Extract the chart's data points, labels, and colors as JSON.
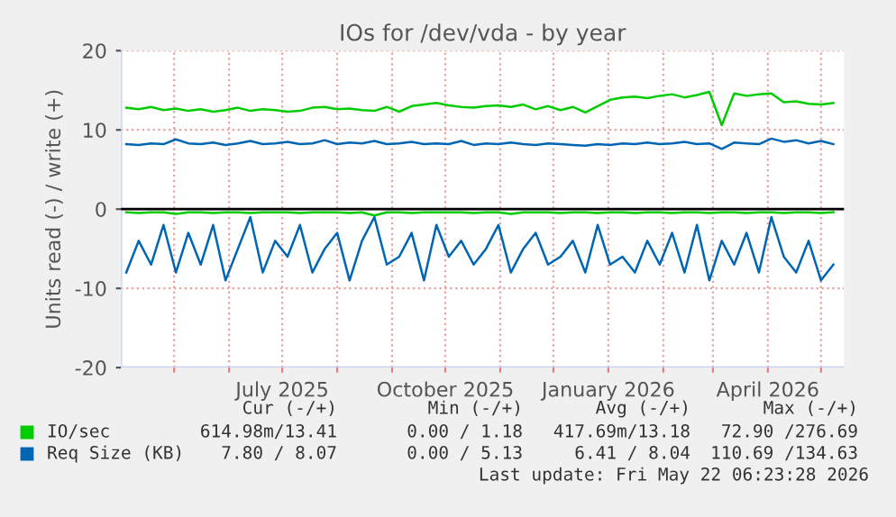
{
  "chart_data": {
    "type": "line",
    "title": "IOs for /dev/vda - by year",
    "ylabel": "Units read (-) / write (+)",
    "x": [
      "2025-04-04",
      "2025-04-11",
      "2025-04-18",
      "2025-04-25",
      "2025-05-02",
      "2025-05-09",
      "2025-05-16",
      "2025-05-23",
      "2025-05-30",
      "2025-06-06",
      "2025-06-13",
      "2025-06-20",
      "2025-06-27",
      "2025-07-04",
      "2025-07-11",
      "2025-07-18",
      "2025-07-25",
      "2025-08-01",
      "2025-08-08",
      "2025-08-15",
      "2025-08-22",
      "2025-08-29",
      "2025-09-05",
      "2025-09-12",
      "2025-09-19",
      "2025-09-26",
      "2025-10-03",
      "2025-10-10",
      "2025-10-17",
      "2025-10-24",
      "2025-10-31",
      "2025-11-07",
      "2025-11-14",
      "2025-11-21",
      "2025-11-28",
      "2025-12-05",
      "2025-12-12",
      "2025-12-19",
      "2025-12-26",
      "2026-01-02",
      "2026-01-09",
      "2026-01-16",
      "2026-01-23",
      "2026-01-30",
      "2026-02-06",
      "2026-02-13",
      "2026-02-20",
      "2026-02-27",
      "2026-03-06",
      "2026-03-13",
      "2026-03-20",
      "2026-03-27",
      "2026-04-03",
      "2026-04-10",
      "2026-04-17",
      "2026-04-24",
      "2026-05-01",
      "2026-05-08"
    ],
    "series": [
      {
        "name": "IO/sec",
        "color": "#00cc00",
        "values": [
          12.8,
          12.6,
          12.9,
          12.5,
          12.7,
          12.4,
          12.6,
          12.3,
          12.5,
          12.8,
          12.4,
          12.6,
          12.5,
          12.3,
          12.4,
          12.8,
          12.9,
          12.6,
          12.7,
          12.5,
          12.4,
          12.9,
          12.3,
          13.0,
          13.2,
          13.4,
          13.1,
          12.9,
          12.8,
          13.0,
          13.1,
          12.9,
          13.2,
          12.6,
          13.0,
          12.5,
          12.9,
          12.2,
          13.0,
          13.8,
          14.1,
          14.2,
          14.0,
          14.3,
          14.5,
          14.1,
          14.4,
          14.8,
          10.6,
          14.6,
          14.3,
          14.5,
          14.6,
          13.5,
          13.6,
          13.3,
          13.2,
          13.4
        ]
      },
      {
        "color": "#00cc00",
        "values": [
          -0.4,
          -0.5,
          -0.4,
          -0.4,
          -0.6,
          -0.4,
          -0.4,
          -0.5,
          -0.4,
          -0.4,
          -0.5,
          -0.4,
          -0.4,
          -0.4,
          -0.5,
          -0.4,
          -0.4,
          -0.4,
          -0.5,
          -0.4,
          -0.8,
          -0.4,
          -0.4,
          -0.5,
          -0.4,
          -0.4,
          -0.4,
          -0.4,
          -0.5,
          -0.4,
          -0.4,
          -0.6,
          -0.4,
          -0.4,
          -0.4,
          -0.5,
          -0.4,
          -0.4,
          -0.5,
          -0.4,
          -0.4,
          -0.5,
          -0.4,
          -0.4,
          -0.5,
          -0.4,
          -0.4,
          -0.5,
          -0.4,
          -0.4,
          -0.5,
          -0.4,
          -0.4,
          -0.5,
          -0.4,
          -0.4,
          -0.5,
          -0.4
        ]
      },
      {
        "name": "Req Size (KB)",
        "color": "#0066b3",
        "values": [
          8.2,
          8.1,
          8.3,
          8.2,
          8.8,
          8.3,
          8.2,
          8.4,
          8.1,
          8.3,
          8.6,
          8.2,
          8.3,
          8.5,
          8.2,
          8.3,
          8.7,
          8.2,
          8.4,
          8.3,
          8.6,
          8.2,
          8.3,
          8.5,
          8.2,
          8.3,
          8.2,
          8.6,
          8.1,
          8.3,
          8.2,
          8.4,
          8.2,
          8.1,
          8.3,
          8.2,
          8.1,
          8.0,
          8.2,
          8.1,
          8.3,
          8.2,
          8.4,
          8.2,
          8.3,
          8.5,
          8.2,
          8.3,
          7.6,
          8.4,
          8.3,
          8.2,
          8.9,
          8.5,
          8.7,
          8.3,
          8.6,
          8.2
        ]
      },
      {
        "color": "#0066b3",
        "values": [
          -8,
          -4,
          -7,
          -2,
          -8,
          -3,
          -7,
          -2,
          -9,
          -5,
          -1,
          -8,
          -4,
          -6,
          -2,
          -8,
          -5,
          -3,
          -9,
          -4,
          -1,
          -7,
          -6,
          -3,
          -9,
          -2,
          -6,
          -4,
          -7,
          -5,
          -2,
          -8,
          -5,
          -3,
          -7,
          -6,
          -4,
          -8,
          -2,
          -7,
          -6,
          -8,
          -4,
          -7,
          -3,
          -8,
          -2,
          -9,
          -4,
          -7,
          -3,
          -8,
          -1,
          -6,
          -8,
          -4,
          -9,
          -7
        ]
      }
    ],
    "xlim": [
      "2025-04-01",
      "2026-05-14"
    ],
    "xticks": [
      {
        "value": "2025-05-01",
        "label": null
      },
      {
        "value": "2025-06-01",
        "label": null
      },
      {
        "value": "2025-07-01",
        "label": "July 2025"
      },
      {
        "value": "2025-08-01",
        "label": null
      },
      {
        "value": "2025-09-01",
        "label": null
      },
      {
        "value": "2025-10-01",
        "label": "October 2025"
      },
      {
        "value": "2025-11-01",
        "label": null
      },
      {
        "value": "2025-12-01",
        "label": null
      },
      {
        "value": "2026-01-01",
        "label": "January 2026"
      },
      {
        "value": "2026-02-01",
        "label": null
      },
      {
        "value": "2026-03-01",
        "label": null
      },
      {
        "value": "2026-04-01",
        "label": "April 2026"
      },
      {
        "value": "2026-05-01",
        "label": null
      }
    ],
    "ylim": [
      -20,
      20
    ],
    "yticks": [
      -20,
      -10,
      0,
      10,
      20
    ],
    "ref_lines": [
      {
        "axis": "y",
        "value": 0,
        "color": "#000000"
      }
    ],
    "grid": true,
    "legend": "bottom",
    "annotations": [
      "Cur (-/+)",
      "Min (-/+)",
      "Avg (-/+)",
      "Max (-/+)",
      "614.98m/13.41",
      "0.00 / 1.18",
      "417.69m/13.18",
      "72.90 /276.69",
      "7.80 / 8.07",
      "0.00 / 5.13",
      "6.41 / 8.04",
      "110.69 /134.63",
      "Last update: Fri May 22 06:23:28 2026"
    ]
  }
}
